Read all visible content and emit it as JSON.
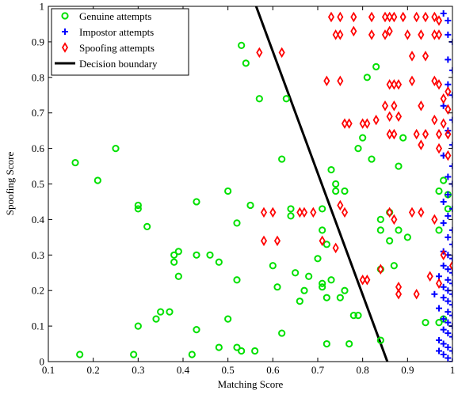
{
  "chart_data": {
    "type": "scatter",
    "title": "",
    "xlabel": "Matching Score",
    "ylabel": "Spoofing Score",
    "xlim": [
      0.1,
      1.0
    ],
    "ylim": [
      0,
      1.0
    ],
    "xticks": [
      "0.1",
      "0.2",
      "0.3",
      "0.4",
      "0.5",
      "0.6",
      "0.7",
      "0.8",
      "0.9",
      "1"
    ],
    "yticks": [
      "0",
      "0.1",
      "0.2",
      "0.3",
      "0.4",
      "0.5",
      "0.6",
      "0.7",
      "0.8",
      "0.9",
      "1"
    ],
    "xtick_values": [
      0.1,
      0.2,
      0.3,
      0.4,
      0.5,
      0.6,
      0.7,
      0.8,
      0.9,
      1.0
    ],
    "ytick_values": [
      0,
      0.1,
      0.2,
      0.3,
      0.4,
      0.5,
      0.6,
      0.7,
      0.8,
      0.9,
      1.0
    ],
    "grid": false,
    "legend_position": "top-left",
    "legend": [
      {
        "label": "Genuine attempts",
        "marker": "circle",
        "color": "#00e000"
      },
      {
        "label": "Impostor attempts",
        "marker": "plus",
        "color": "#0000ff"
      },
      {
        "label": "Spoofing attempts",
        "marker": "diamond",
        "color": "#ff0000"
      },
      {
        "label": "Decision boundary",
        "marker": "line",
        "color": "#000000"
      }
    ],
    "series": [
      {
        "name": "Genuine attempts",
        "marker": "circle",
        "color": "#00e000",
        "points": [
          [
            0.16,
            0.56
          ],
          [
            0.17,
            0.02
          ],
          [
            0.21,
            0.51
          ],
          [
            0.25,
            0.6
          ],
          [
            0.29,
            0.02
          ],
          [
            0.3,
            0.44
          ],
          [
            0.3,
            0.43
          ],
          [
            0.3,
            0.1
          ],
          [
            0.32,
            0.38
          ],
          [
            0.34,
            0.12
          ],
          [
            0.35,
            0.14
          ],
          [
            0.37,
            0.14
          ],
          [
            0.38,
            0.28
          ],
          [
            0.38,
            0.3
          ],
          [
            0.39,
            0.31
          ],
          [
            0.39,
            0.24
          ],
          [
            0.42,
            0.02
          ],
          [
            0.43,
            0.3
          ],
          [
            0.43,
            0.09
          ],
          [
            0.43,
            0.45
          ],
          [
            0.46,
            0.3
          ],
          [
            0.48,
            0.28
          ],
          [
            0.48,
            0.04
          ],
          [
            0.5,
            0.12
          ],
          [
            0.5,
            0.48
          ],
          [
            0.52,
            0.04
          ],
          [
            0.52,
            0.23
          ],
          [
            0.52,
            0.39
          ],
          [
            0.53,
            0.03
          ],
          [
            0.53,
            0.89
          ],
          [
            0.54,
            0.84
          ],
          [
            0.55,
            0.44
          ],
          [
            0.56,
            0.03
          ],
          [
            0.57,
            0.74
          ],
          [
            0.6,
            0.27
          ],
          [
            0.61,
            0.21
          ],
          [
            0.62,
            0.57
          ],
          [
            0.62,
            0.08
          ],
          [
            0.63,
            0.74
          ],
          [
            0.64,
            0.43
          ],
          [
            0.64,
            0.41
          ],
          [
            0.65,
            0.25
          ],
          [
            0.66,
            0.17
          ],
          [
            0.67,
            0.2
          ],
          [
            0.68,
            0.24
          ],
          [
            0.7,
            0.29
          ],
          [
            0.71,
            0.37
          ],
          [
            0.71,
            0.22
          ],
          [
            0.71,
            0.21
          ],
          [
            0.71,
            0.43
          ],
          [
            0.72,
            0.33
          ],
          [
            0.72,
            0.18
          ],
          [
            0.72,
            0.05
          ],
          [
            0.73,
            0.54
          ],
          [
            0.73,
            0.23
          ],
          [
            0.74,
            0.5
          ],
          [
            0.74,
            0.48
          ],
          [
            0.75,
            0.18
          ],
          [
            0.76,
            0.48
          ],
          [
            0.76,
            0.2
          ],
          [
            0.77,
            0.05
          ],
          [
            0.78,
            0.13
          ],
          [
            0.79,
            0.6
          ],
          [
            0.79,
            0.13
          ],
          [
            0.8,
            0.63
          ],
          [
            0.81,
            0.8
          ],
          [
            0.82,
            0.57
          ],
          [
            0.83,
            0.83
          ],
          [
            0.84,
            0.26
          ],
          [
            0.84,
            0.06
          ],
          [
            0.84,
            0.37
          ],
          [
            0.84,
            0.4
          ],
          [
            0.86,
            0.42
          ],
          [
            0.86,
            0.34
          ],
          [
            0.87,
            0.27
          ],
          [
            0.88,
            0.37
          ],
          [
            0.88,
            0.55
          ],
          [
            0.89,
            0.63
          ],
          [
            0.9,
            0.35
          ],
          [
            0.94,
            0.11
          ],
          [
            0.97,
            0.11
          ],
          [
            0.97,
            0.48
          ],
          [
            0.97,
            0.37
          ],
          [
            0.98,
            0.51
          ],
          [
            0.98,
            0.12
          ],
          [
            0.99,
            0.43
          ],
          [
            0.99,
            0.47
          ]
        ]
      },
      {
        "name": "Impostor attempts",
        "marker": "plus",
        "color": "#0000ff",
        "points": [
          [
            0.98,
            0.98
          ],
          [
            0.99,
            0.96
          ],
          [
            0.99,
            0.92
          ],
          [
            1.0,
            0.9
          ],
          [
            0.99,
            0.85
          ],
          [
            1.0,
            0.82
          ],
          [
            0.99,
            0.78
          ],
          [
            1.0,
            0.75
          ],
          [
            0.98,
            0.72
          ],
          [
            1.0,
            0.68
          ],
          [
            0.99,
            0.65
          ],
          [
            1.0,
            0.61
          ],
          [
            0.98,
            0.58
          ],
          [
            1.0,
            0.55
          ],
          [
            0.99,
            0.52
          ],
          [
            1.0,
            0.5
          ],
          [
            0.99,
            0.47
          ],
          [
            0.98,
            0.45
          ],
          [
            1.0,
            0.43
          ],
          [
            0.99,
            0.41
          ],
          [
            0.98,
            0.39
          ],
          [
            1.0,
            0.37
          ],
          [
            0.99,
            0.35
          ],
          [
            1.0,
            0.33
          ],
          [
            0.98,
            0.31
          ],
          [
            0.99,
            0.3
          ],
          [
            1.0,
            0.29
          ],
          [
            0.98,
            0.27
          ],
          [
            0.99,
            0.26
          ],
          [
            1.0,
            0.25
          ],
          [
            0.97,
            0.24
          ],
          [
            0.99,
            0.23
          ],
          [
            1.0,
            0.22
          ],
          [
            0.98,
            0.21
          ],
          [
            0.99,
            0.2
          ],
          [
            1.0,
            0.19
          ],
          [
            0.96,
            0.19
          ],
          [
            0.98,
            0.18
          ],
          [
            0.99,
            0.17
          ],
          [
            1.0,
            0.16
          ],
          [
            0.97,
            0.15
          ],
          [
            0.99,
            0.14
          ],
          [
            1.0,
            0.13
          ],
          [
            0.98,
            0.12
          ],
          [
            0.99,
            0.11
          ],
          [
            1.0,
            0.1
          ],
          [
            0.98,
            0.09
          ],
          [
            0.99,
            0.08
          ],
          [
            1.0,
            0.07
          ],
          [
            0.97,
            0.06
          ],
          [
            0.98,
            0.05
          ],
          [
            0.99,
            0.04
          ],
          [
            1.0,
            0.03
          ],
          [
            0.98,
            0.02
          ],
          [
            0.99,
            0.01
          ],
          [
            1.0,
            0.0
          ],
          [
            0.97,
            0.03
          ]
        ]
      },
      {
        "name": "Spoofing attempts",
        "marker": "diamond",
        "color": "#ff0000",
        "points": [
          [
            0.73,
            0.97
          ],
          [
            0.75,
            0.97
          ],
          [
            0.78,
            0.97
          ],
          [
            0.82,
            0.97
          ],
          [
            0.85,
            0.97
          ],
          [
            0.86,
            0.97
          ],
          [
            0.87,
            0.97
          ],
          [
            0.89,
            0.97
          ],
          [
            0.92,
            0.97
          ],
          [
            0.94,
            0.97
          ],
          [
            0.96,
            0.97
          ],
          [
            0.97,
            0.96
          ],
          [
            0.74,
            0.92
          ],
          [
            0.75,
            0.92
          ],
          [
            0.78,
            0.93
          ],
          [
            0.82,
            0.92
          ],
          [
            0.85,
            0.92
          ],
          [
            0.86,
            0.93
          ],
          [
            0.9,
            0.92
          ],
          [
            0.93,
            0.92
          ],
          [
            0.96,
            0.92
          ],
          [
            0.97,
            0.92
          ],
          [
            0.57,
            0.87
          ],
          [
            0.62,
            0.87
          ],
          [
            0.91,
            0.86
          ],
          [
            0.94,
            0.86
          ],
          [
            0.72,
            0.79
          ],
          [
            0.75,
            0.79
          ],
          [
            0.86,
            0.78
          ],
          [
            0.87,
            0.78
          ],
          [
            0.88,
            0.78
          ],
          [
            0.91,
            0.79
          ],
          [
            0.96,
            0.79
          ],
          [
            0.97,
            0.78
          ],
          [
            0.99,
            0.76
          ],
          [
            0.98,
            0.74
          ],
          [
            0.99,
            0.71
          ],
          [
            0.85,
            0.72
          ],
          [
            0.87,
            0.72
          ],
          [
            0.93,
            0.72
          ],
          [
            0.86,
            0.69
          ],
          [
            0.88,
            0.69
          ],
          [
            0.96,
            0.68
          ],
          [
            0.98,
            0.67
          ],
          [
            0.76,
            0.67
          ],
          [
            0.77,
            0.67
          ],
          [
            0.8,
            0.67
          ],
          [
            0.81,
            0.67
          ],
          [
            0.83,
            0.68
          ],
          [
            0.86,
            0.64
          ],
          [
            0.87,
            0.64
          ],
          [
            0.92,
            0.64
          ],
          [
            0.94,
            0.64
          ],
          [
            0.97,
            0.64
          ],
          [
            0.99,
            0.64
          ],
          [
            0.93,
            0.61
          ],
          [
            0.97,
            0.6
          ],
          [
            0.99,
            0.58
          ],
          [
            0.58,
            0.42
          ],
          [
            0.6,
            0.42
          ],
          [
            0.66,
            0.42
          ],
          [
            0.67,
            0.42
          ],
          [
            0.69,
            0.42
          ],
          [
            0.75,
            0.44
          ],
          [
            0.76,
            0.42
          ],
          [
            0.86,
            0.42
          ],
          [
            0.87,
            0.4
          ],
          [
            0.91,
            0.42
          ],
          [
            0.93,
            0.42
          ],
          [
            0.96,
            0.4
          ],
          [
            0.58,
            0.34
          ],
          [
            0.61,
            0.34
          ],
          [
            0.71,
            0.34
          ],
          [
            0.74,
            0.32
          ],
          [
            0.8,
            0.23
          ],
          [
            0.81,
            0.23
          ],
          [
            0.84,
            0.26
          ],
          [
            0.88,
            0.21
          ],
          [
            0.88,
            0.19
          ],
          [
            0.92,
            0.19
          ],
          [
            0.95,
            0.24
          ],
          [
            0.97,
            0.22
          ],
          [
            0.98,
            0.3
          ],
          [
            1.0,
            0.27
          ]
        ]
      }
    ],
    "decision_boundary": {
      "name": "Decision boundary",
      "points": [
        [
          0.5628,
          1.0
        ],
        [
          0.855,
          0.0
        ]
      ]
    }
  }
}
